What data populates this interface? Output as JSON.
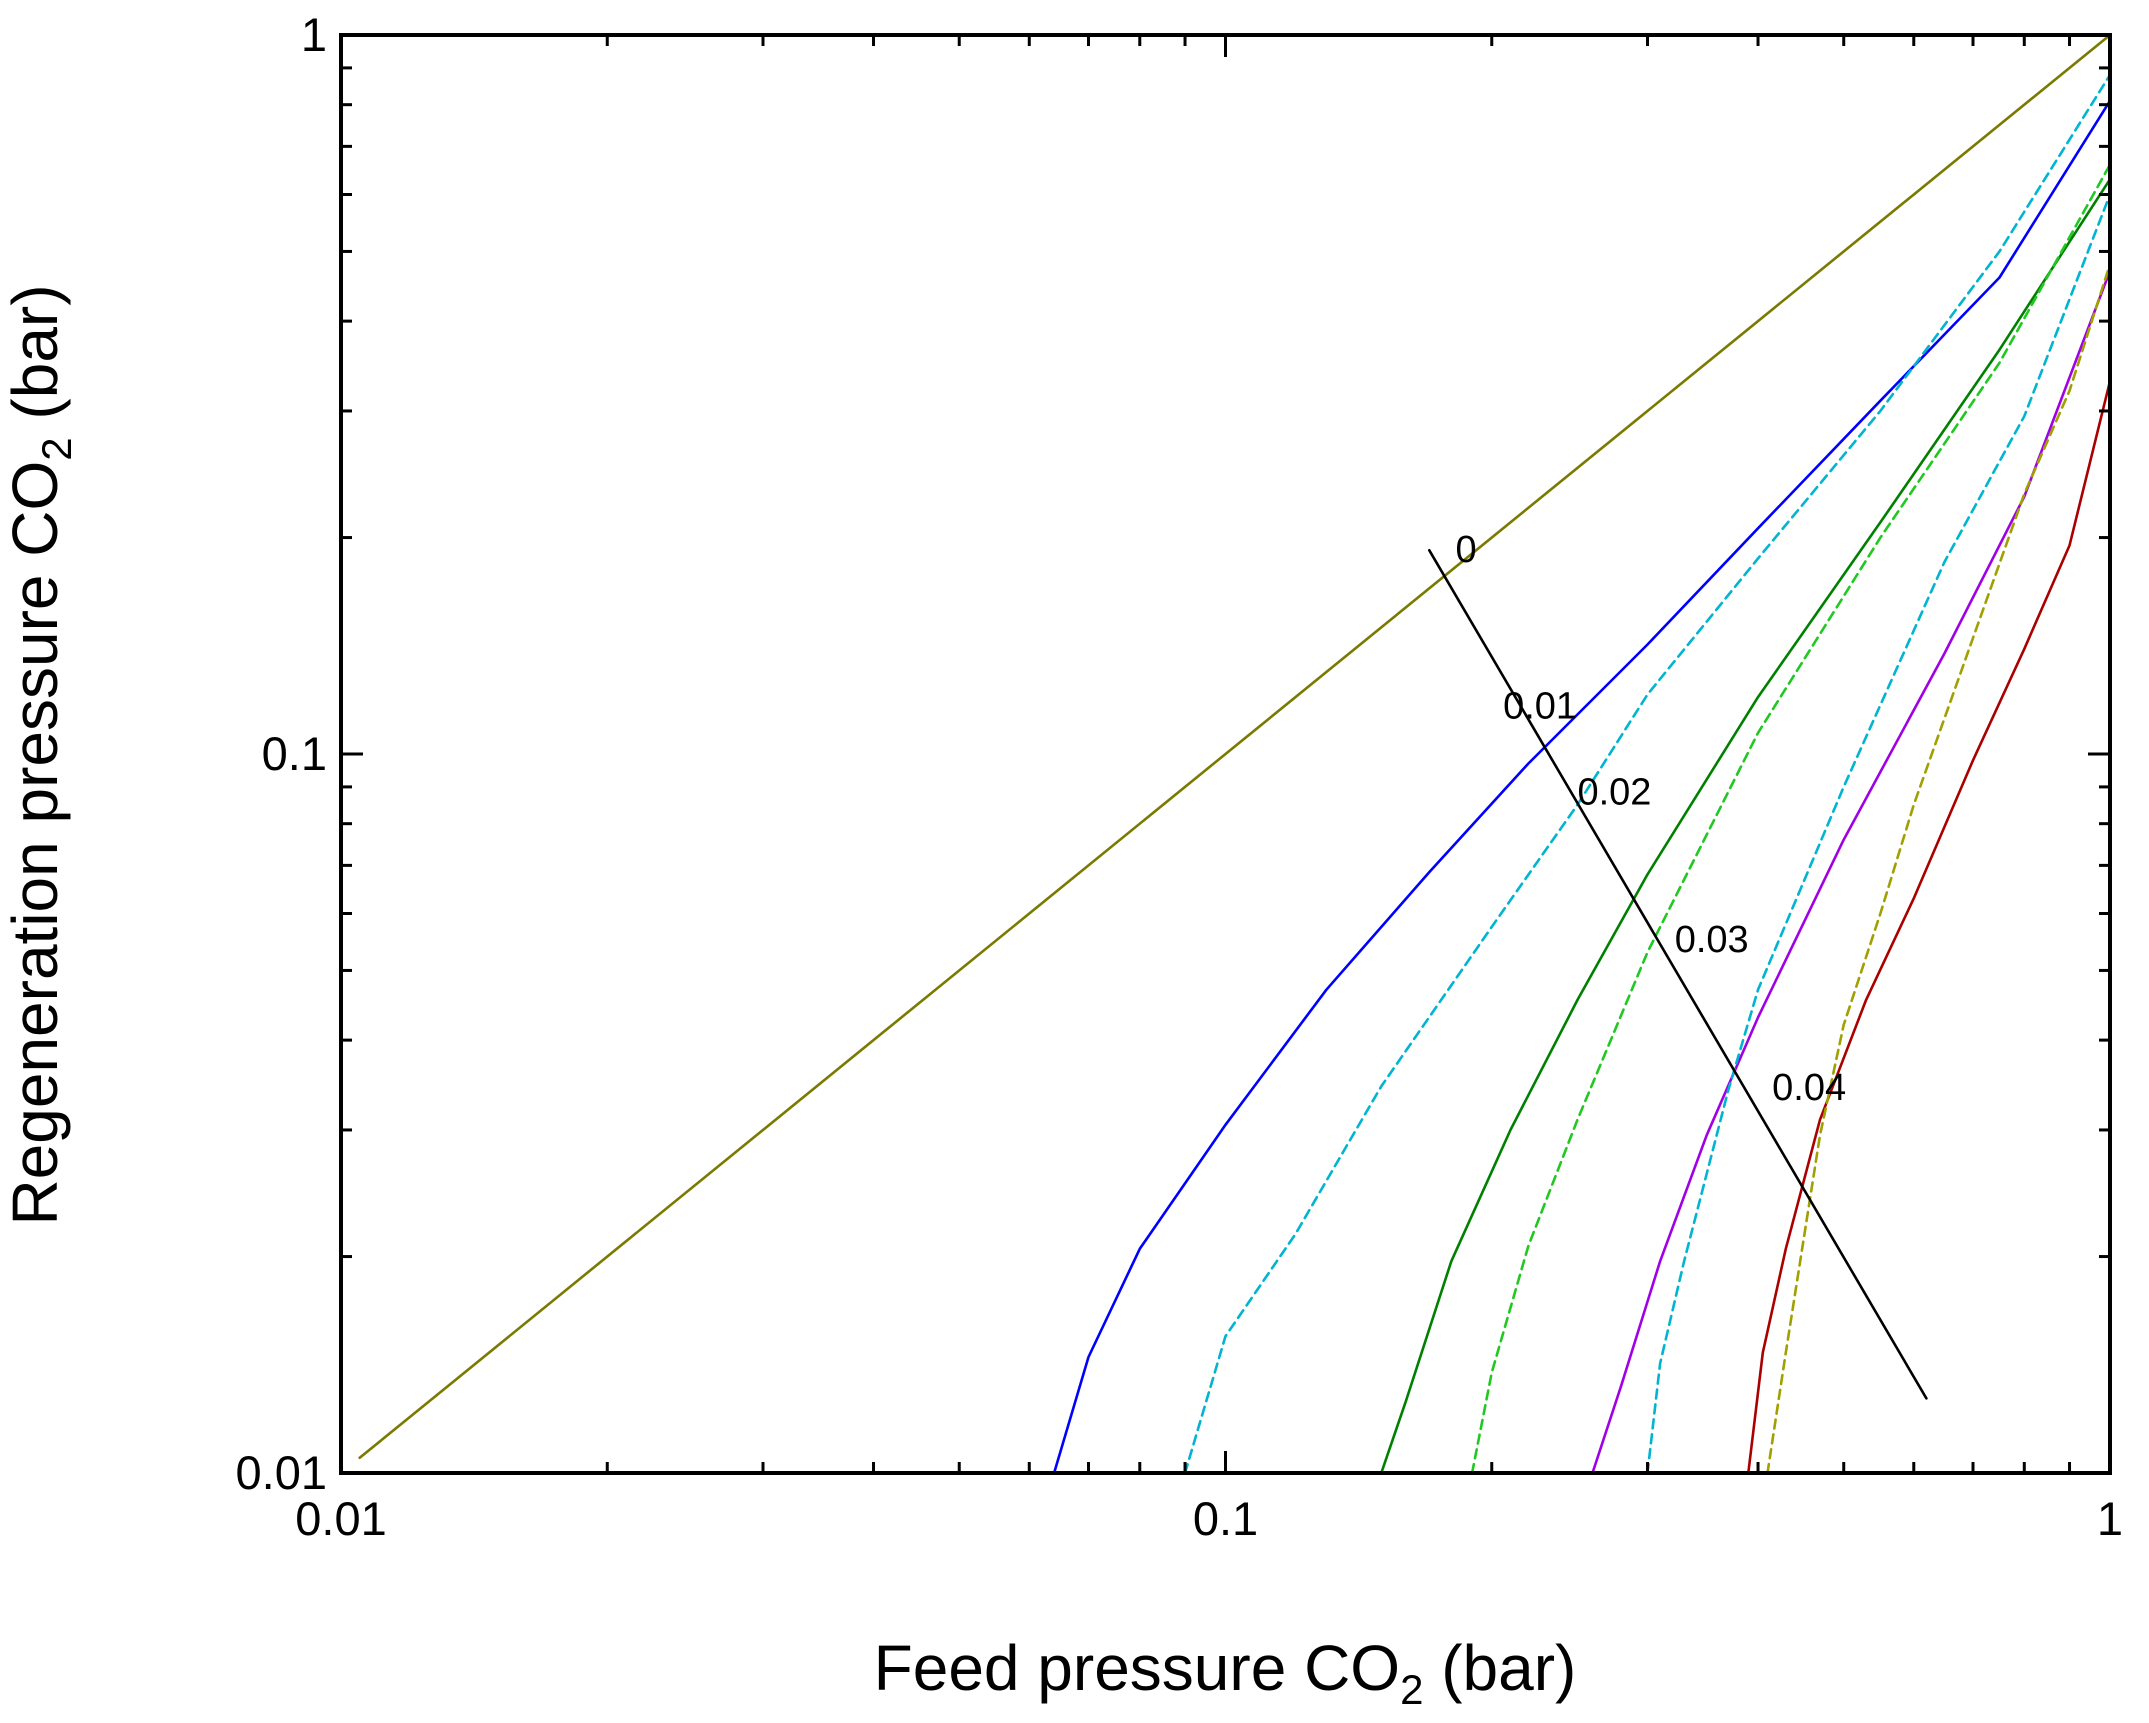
{
  "chart_data": {
    "type": "line",
    "xscale": "log",
    "yscale": "log",
    "xlim": [
      0.01,
      1
    ],
    "ylim": [
      0.01,
      1
    ],
    "x_ticks": [
      {
        "value": 0.01,
        "label": "0.01"
      },
      {
        "value": 0.1,
        "label": "0.1"
      },
      {
        "value": 1,
        "label": "1"
      }
    ],
    "y_ticks": [
      {
        "value": 0.01,
        "label": "0.01"
      },
      {
        "value": 0.1,
        "label": "0.1"
      },
      {
        "value": 1,
        "label": "1"
      }
    ],
    "xlabel": {
      "pre": "Feed pressure CO",
      "sub": "2",
      "post": " (bar)"
    },
    "ylabel": {
      "pre": "Regeneration pressure CO",
      "sub": "2",
      "post": " (bar)"
    },
    "series": [
      {
        "name": "0",
        "color": "#7a7a00",
        "dash": false,
        "points": [
          [
            0.0105,
            0.0105
          ],
          [
            1,
            1
          ]
        ]
      },
      {
        "name": "0.01 solid",
        "color": "#0000ff",
        "dash": false,
        "points": [
          [
            0.064,
            0.01
          ],
          [
            0.07,
            0.0145
          ],
          [
            0.08,
            0.0205
          ],
          [
            0.1,
            0.0305
          ],
          [
            0.13,
            0.047
          ],
          [
            0.17,
            0.0685
          ],
          [
            0.22,
            0.097
          ],
          [
            0.3,
            0.142
          ],
          [
            0.4,
            0.206
          ],
          [
            0.55,
            0.31
          ],
          [
            0.75,
            0.46
          ],
          [
            1,
            0.81
          ]
        ]
      },
      {
        "name": "0.01 dashed",
        "color": "#00b4d2",
        "dash": true,
        "points": [
          [
            0.09,
            0.01
          ],
          [
            0.1,
            0.0155
          ],
          [
            0.12,
            0.0215
          ],
          [
            0.15,
            0.0345
          ],
          [
            0.2,
            0.0575
          ],
          [
            0.25,
            0.085
          ],
          [
            0.3,
            0.121
          ],
          [
            0.4,
            0.187
          ],
          [
            0.55,
            0.3
          ],
          [
            0.75,
            0.5
          ],
          [
            1,
            0.88
          ]
        ]
      },
      {
        "name": "0.02 solid",
        "color": "#008000",
        "dash": false,
        "points": [
          [
            0.15,
            0.01
          ],
          [
            0.16,
            0.0126
          ],
          [
            0.18,
            0.0197
          ],
          [
            0.21,
            0.03
          ],
          [
            0.25,
            0.0455
          ],
          [
            0.3,
            0.068
          ],
          [
            0.4,
            0.12
          ],
          [
            0.55,
            0.21
          ],
          [
            0.75,
            0.365
          ],
          [
            1,
            0.63
          ]
        ]
      },
      {
        "name": "0.02 dashed",
        "color": "#22c822",
        "dash": true,
        "points": [
          [
            0.19,
            0.01
          ],
          [
            0.2,
            0.0138
          ],
          [
            0.22,
            0.0207
          ],
          [
            0.25,
            0.031
          ],
          [
            0.3,
            0.053
          ],
          [
            0.4,
            0.107
          ],
          [
            0.55,
            0.2
          ],
          [
            0.75,
            0.35
          ],
          [
            1,
            0.66
          ]
        ]
      },
      {
        "name": "0.03 solid",
        "color": "#a000e6",
        "dash": false,
        "points": [
          [
            0.26,
            0.01
          ],
          [
            0.28,
            0.0132
          ],
          [
            0.31,
            0.0197
          ],
          [
            0.35,
            0.0295
          ],
          [
            0.4,
            0.043
          ],
          [
            0.5,
            0.076
          ],
          [
            0.65,
            0.138
          ],
          [
            0.8,
            0.228
          ],
          [
            1,
            0.47
          ]
        ]
      },
      {
        "name": "0.03 dashed",
        "color": "#00b4d2",
        "dash": true,
        "points": [
          [
            0.3,
            0.01
          ],
          [
            0.31,
            0.0142
          ],
          [
            0.33,
            0.0197
          ],
          [
            0.37,
            0.034
          ],
          [
            0.4,
            0.047
          ],
          [
            0.5,
            0.09
          ],
          [
            0.65,
            0.185
          ],
          [
            0.8,
            0.295
          ],
          [
            1,
            0.6
          ]
        ]
      },
      {
        "name": "0.04 solid",
        "color": "#aa0000",
        "dash": false,
        "points": [
          [
            0.39,
            0.01
          ],
          [
            0.405,
            0.0147
          ],
          [
            0.43,
            0.0205
          ],
          [
            0.47,
            0.031
          ],
          [
            0.53,
            0.0455
          ],
          [
            0.6,
            0.063
          ],
          [
            0.7,
            0.098
          ],
          [
            0.8,
            0.14
          ],
          [
            0.9,
            0.195
          ],
          [
            1,
            0.33
          ]
        ]
      },
      {
        "name": "0.04 dashed",
        "color": "#a0a000",
        "dash": true,
        "points": [
          [
            0.41,
            0.01
          ],
          [
            0.43,
            0.0147
          ],
          [
            0.47,
            0.0295
          ],
          [
            0.5,
            0.042
          ],
          [
            0.55,
            0.06
          ],
          [
            0.6,
            0.085
          ],
          [
            0.7,
            0.145
          ],
          [
            0.8,
            0.23
          ],
          [
            0.9,
            0.32
          ],
          [
            1,
            0.48
          ]
        ]
      },
      {
        "name": "isoline",
        "color": "#000000",
        "dash": false,
        "points": [
          [
            0.17,
            0.192
          ],
          [
            0.62,
            0.0127
          ]
        ]
      }
    ],
    "annotations": [
      {
        "text": "0",
        "x": 0.182,
        "y": 0.185
      },
      {
        "text": "0.01",
        "x": 0.206,
        "y": 0.112
      },
      {
        "text": "0.02",
        "x": 0.25,
        "y": 0.085
      },
      {
        "text": "0.03",
        "x": 0.322,
        "y": 0.053
      },
      {
        "text": "0.04",
        "x": 0.415,
        "y": 0.033
      }
    ]
  }
}
